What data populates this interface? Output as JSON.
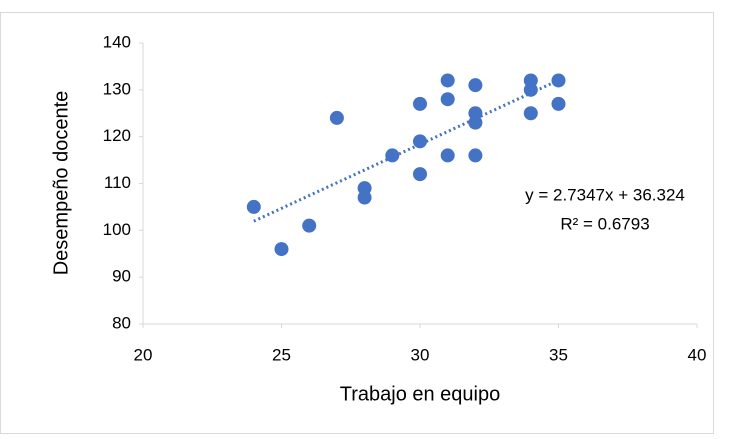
{
  "chart_data": {
    "type": "scatter",
    "xlabel": "Trabajo en equipo",
    "ylabel": "Desempeño docente",
    "xlim": [
      20,
      40
    ],
    "xticks": [
      20,
      25,
      30,
      35,
      40
    ],
    "ylim": [
      80,
      140
    ],
    "yticks": [
      80,
      90,
      100,
      110,
      120,
      130,
      140
    ],
    "grid": false,
    "series": [
      {
        "color": "#4472c4",
        "x": [
          24,
          25,
          26,
          27,
          28,
          28,
          29,
          30,
          30,
          30,
          31,
          31,
          31,
          32,
          32,
          32,
          32,
          34,
          34,
          34,
          35,
          35
        ],
        "values": [
          105,
          96,
          101,
          124,
          109,
          107,
          116,
          127,
          119,
          112,
          132,
          128,
          116,
          131,
          125,
          123,
          116,
          132,
          130,
          125,
          132,
          127
        ]
      }
    ],
    "trendline": {
      "slope": 2.7347,
      "intercept": 36.324,
      "equation": "y = 2.7347x + 36.324",
      "r2": "R² = 0.6793"
    }
  }
}
